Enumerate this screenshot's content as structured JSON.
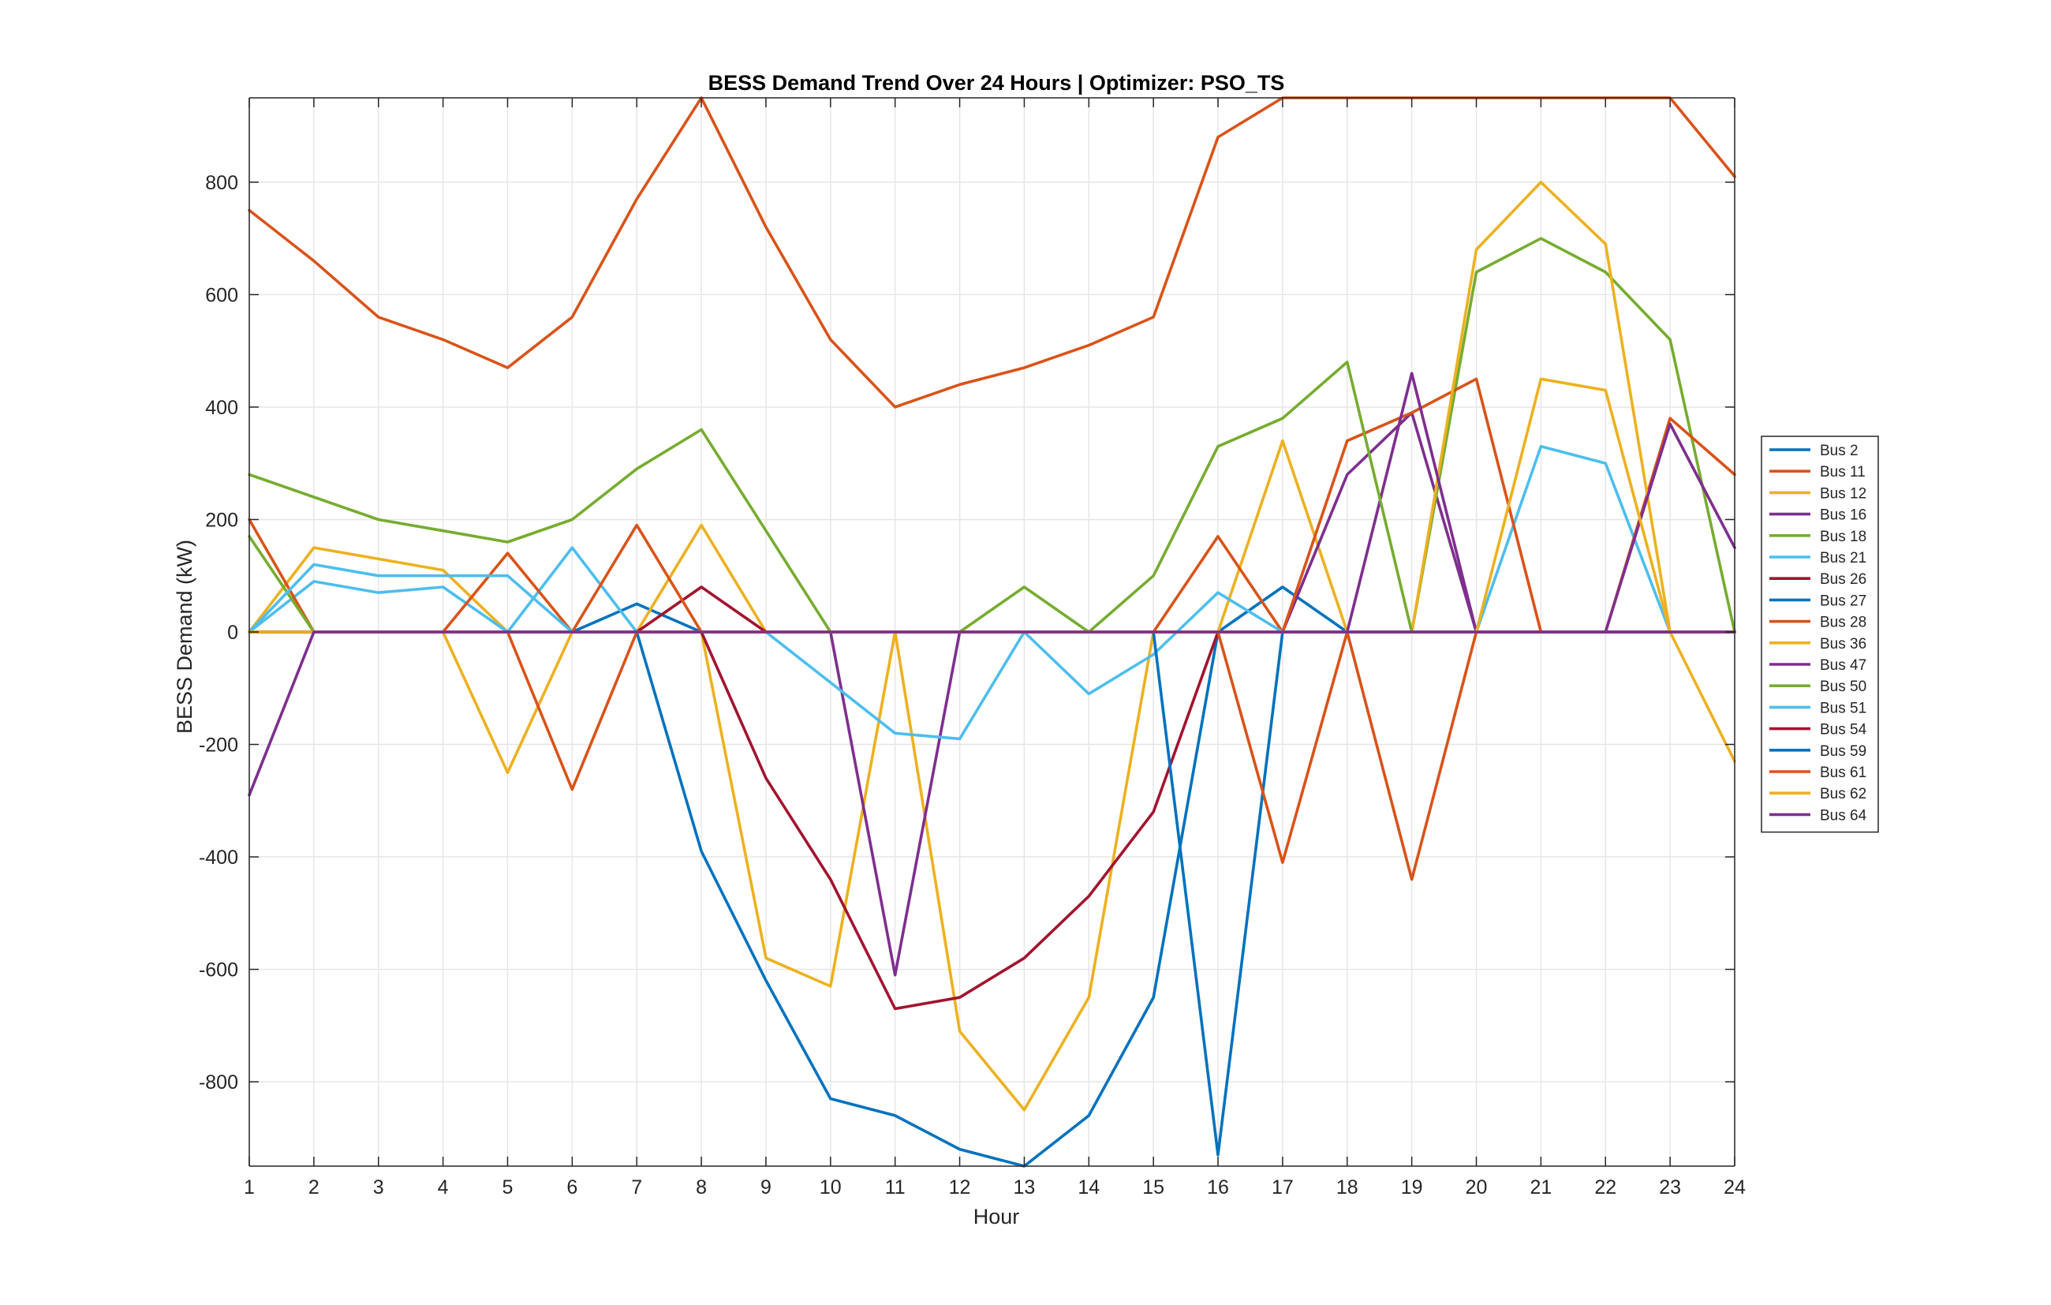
{
  "chart_data": {
    "type": "line",
    "title": "BESS Demand Trend Over 24 Hours | Optimizer: PSO_TS",
    "xlabel": "Hour",
    "ylabel": "BESS Demand (kW)",
    "xlim": [
      1,
      24
    ],
    "ylim": [
      -950,
      950
    ],
    "x": [
      1,
      2,
      3,
      4,
      5,
      6,
      7,
      8,
      9,
      10,
      11,
      12,
      13,
      14,
      15,
      16,
      17,
      18,
      19,
      20,
      21,
      22,
      23,
      24
    ],
    "xticks": [
      "1",
      "2",
      "3",
      "4",
      "5",
      "6",
      "7",
      "8",
      "9",
      "10",
      "11",
      "12",
      "13",
      "14",
      "15",
      "16",
      "17",
      "18",
      "19",
      "20",
      "21",
      "22",
      "23",
      "24"
    ],
    "yticks": [
      {
        "value": -800,
        "label": "-800"
      },
      {
        "value": -600,
        "label": "-600"
      },
      {
        "value": -400,
        "label": "-400"
      },
      {
        "value": -200,
        "label": "-200"
      },
      {
        "value": 0,
        "label": "0"
      },
      {
        "value": 200,
        "label": "200"
      },
      {
        "value": 400,
        "label": "400"
      },
      {
        "value": 600,
        "label": "600"
      },
      {
        "value": 800,
        "label": "800"
      }
    ],
    "grid": true,
    "legend_position": "right",
    "series": [
      {
        "name": "Bus 2",
        "color": "#0072BD",
        "values": [
          0,
          0,
          0,
          0,
          0,
          0,
          50,
          0,
          0,
          0,
          0,
          0,
          0,
          0,
          0,
          0,
          80,
          0,
          0,
          0,
          0,
          0,
          0,
          0
        ]
      },
      {
        "name": "Bus 11",
        "color": "#D95319",
        "values": [
          750,
          660,
          560,
          520,
          470,
          560,
          770,
          950,
          720,
          520,
          400,
          440,
          470,
          510,
          560,
          880,
          950,
          950,
          950,
          950,
          950,
          950,
          950,
          810
        ]
      },
      {
        "name": "Bus 12",
        "color": "#EDB120",
        "values": [
          0,
          150,
          130,
          110,
          0,
          0,
          0,
          190,
          0,
          0,
          0,
          0,
          0,
          0,
          0,
          0,
          340,
          0,
          0,
          0,
          0,
          0,
          0,
          0
        ]
      },
      {
        "name": "Bus 16",
        "color": "#7E2F8E",
        "values": [
          0,
          0,
          0,
          0,
          0,
          0,
          0,
          0,
          0,
          0,
          0,
          0,
          0,
          0,
          0,
          0,
          0,
          280,
          390,
          0,
          0,
          0,
          0,
          0
        ]
      },
      {
        "name": "Bus 18",
        "color": "#77AC30",
        "values": [
          280,
          240,
          200,
          180,
          160,
          200,
          290,
          360,
          180,
          0,
          0,
          0,
          0,
          0,
          0,
          0,
          0,
          0,
          0,
          640,
          700,
          640,
          520,
          0
        ]
      },
      {
        "name": "Bus 21",
        "color": "#4DBEEE",
        "values": [
          0,
          90,
          70,
          80,
          0,
          150,
          0,
          0,
          0,
          0,
          0,
          0,
          0,
          0,
          0,
          0,
          0,
          0,
          0,
          0,
          330,
          300,
          0,
          0
        ]
      },
      {
        "name": "Bus 26",
        "color": "#A2142F",
        "values": [
          0,
          0,
          0,
          0,
          0,
          0,
          0,
          80,
          0,
          0,
          0,
          0,
          0,
          0,
          0,
          0,
          0,
          0,
          0,
          0,
          0,
          0,
          0,
          0
        ]
      },
      {
        "name": "Bus 27",
        "color": "#0072BD",
        "values": [
          0,
          0,
          0,
          0,
          0,
          0,
          0,
          -390,
          -620,
          -830,
          -860,
          -920,
          -950,
          -860,
          -650,
          0,
          0,
          0,
          0,
          0,
          0,
          0,
          0,
          0
        ]
      },
      {
        "name": "Bus 28",
        "color": "#D95319",
        "values": [
          200,
          0,
          0,
          0,
          140,
          0,
          190,
          0,
          0,
          0,
          0,
          0,
          0,
          0,
          0,
          170,
          0,
          340,
          390,
          450,
          0,
          0,
          380,
          280
        ]
      },
      {
        "name": "Bus 36",
        "color": "#EDB120",
        "values": [
          0,
          0,
          0,
          0,
          -250,
          0,
          0,
          0,
          -580,
          -630,
          0,
          -710,
          -850,
          -650,
          0,
          0,
          0,
          0,
          0,
          680,
          800,
          690,
          0,
          -230
        ]
      },
      {
        "name": "Bus 47",
        "color": "#7E2F8E",
        "values": [
          0,
          0,
          0,
          0,
          0,
          0,
          0,
          0,
          0,
          0,
          -610,
          0,
          0,
          0,
          0,
          0,
          0,
          0,
          460,
          0,
          0,
          0,
          370,
          150
        ]
      },
      {
        "name": "Bus 50",
        "color": "#77AC30",
        "values": [
          170,
          0,
          0,
          0,
          0,
          0,
          0,
          0,
          0,
          0,
          0,
          0,
          80,
          0,
          100,
          330,
          380,
          480,
          0,
          0,
          0,
          0,
          0,
          0
        ]
      },
      {
        "name": "Bus 51",
        "color": "#4DBEEE",
        "values": [
          0,
          120,
          100,
          100,
          100,
          0,
          0,
          0,
          0,
          -90,
          -180,
          -190,
          0,
          -110,
          -40,
          70,
          0,
          0,
          0,
          0,
          0,
          0,
          0,
          0
        ]
      },
      {
        "name": "Bus 54",
        "color": "#A2142F",
        "values": [
          0,
          0,
          0,
          0,
          0,
          0,
          0,
          0,
          -260,
          -440,
          -670,
          -650,
          -580,
          -470,
          -320,
          0,
          0,
          0,
          0,
          0,
          0,
          0,
          0,
          0
        ]
      },
      {
        "name": "Bus 59",
        "color": "#0072BD",
        "values": [
          0,
          0,
          0,
          0,
          0,
          0,
          0,
          0,
          0,
          0,
          0,
          0,
          0,
          0,
          0,
          -930,
          0,
          0,
          0,
          0,
          0,
          0,
          0,
          0
        ]
      },
      {
        "name": "Bus 61",
        "color": "#D95319",
        "values": [
          0,
          0,
          0,
          0,
          0,
          -280,
          0,
          0,
          0,
          0,
          0,
          0,
          0,
          0,
          0,
          0,
          -410,
          0,
          -440,
          0,
          0,
          0,
          0,
          0
        ]
      },
      {
        "name": "Bus 62",
        "color": "#EDB120",
        "values": [
          0,
          0,
          0,
          0,
          0,
          0,
          0,
          0,
          0,
          0,
          0,
          0,
          0,
          0,
          0,
          0,
          0,
          0,
          0,
          0,
          450,
          430,
          0,
          0
        ]
      },
      {
        "name": "Bus 64",
        "color": "#7E2F8E",
        "values": [
          -290,
          0,
          0,
          0,
          0,
          0,
          0,
          0,
          0,
          0,
          0,
          0,
          0,
          0,
          0,
          0,
          0,
          0,
          0,
          0,
          0,
          0,
          0,
          0
        ]
      }
    ]
  }
}
